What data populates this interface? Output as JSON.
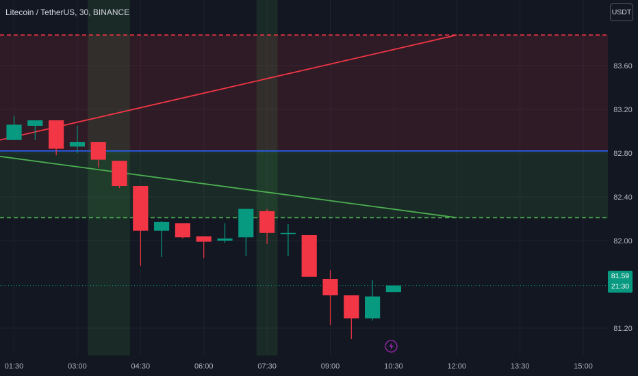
{
  "header": {
    "symbol": "Litecoin / TetherUS",
    "interval": "30",
    "exchange": "BINANCE",
    "title_text": "Litecoin / TetherUS, 30, BINANCE",
    "currency_button": "USDT"
  },
  "colors": {
    "background": "#131722",
    "grid": "#1e222d",
    "up": "#089981",
    "down": "#f23645",
    "resistance": "#f23645",
    "support": "#4caf50",
    "pivot": "#2962ff",
    "axis_text": "#b2b5be"
  },
  "price_badge": {
    "price": "81.59",
    "countdown": "21:30"
  },
  "event_icon": "lightning-bolt-icon",
  "chart_data": {
    "type": "candlestick",
    "x_axis": {
      "unit": "time",
      "range": [
        "01:10",
        "15:35"
      ],
      "tick_labels": [
        "01:30",
        "03:00",
        "04:30",
        "06:00",
        "07:30",
        "09:00",
        "10:30",
        "12:00",
        "13:30",
        "15:00"
      ]
    },
    "y_axis": {
      "position": "right",
      "range": [
        80.95,
        84.2
      ],
      "tick_labels": [
        "81.20",
        "81.59",
        "82.00",
        "82.40",
        "82.80",
        "83.20",
        "83.60"
      ],
      "ticks": [
        81.2,
        82.0,
        82.4,
        82.8,
        83.2,
        83.6
      ]
    },
    "grid": true,
    "candles": [
      {
        "time": "01:30",
        "open": 82.92,
        "high": 83.14,
        "low": 82.92,
        "close": 83.06
      },
      {
        "time": "02:00",
        "open": 83.05,
        "high": 83.08,
        "low": 82.92,
        "close": 83.1
      },
      {
        "time": "02:30",
        "open": 83.1,
        "high": 83.1,
        "low": 82.78,
        "close": 82.84
      },
      {
        "time": "03:00",
        "open": 82.86,
        "high": 83.05,
        "low": 82.8,
        "close": 82.9
      },
      {
        "time": "03:30",
        "open": 82.9,
        "high": 82.9,
        "low": 82.67,
        "close": 82.74
      },
      {
        "time": "04:00",
        "open": 82.73,
        "high": 82.73,
        "low": 82.48,
        "close": 82.5
      },
      {
        "time": "04:30",
        "open": 82.5,
        "high": 82.5,
        "low": 81.77,
        "close": 82.09
      },
      {
        "time": "05:00",
        "open": 82.09,
        "high": 82.18,
        "low": 81.85,
        "close": 82.17
      },
      {
        "time": "05:30",
        "open": 82.16,
        "high": 82.16,
        "low": 82.02,
        "close": 82.03
      },
      {
        "time": "06:00",
        "open": 82.04,
        "high": 82.04,
        "low": 81.84,
        "close": 81.99
      },
      {
        "time": "06:30",
        "open": 82.0,
        "high": 82.16,
        "low": 81.98,
        "close": 82.02
      },
      {
        "time": "07:00",
        "open": 82.03,
        "high": 82.29,
        "low": 81.86,
        "close": 82.29
      },
      {
        "time": "07:30",
        "open": 82.27,
        "high": 82.29,
        "low": 81.97,
        "close": 82.07
      },
      {
        "time": "08:00",
        "open": 82.07,
        "high": 82.15,
        "low": 81.86,
        "close": 82.07
      },
      {
        "time": "08:30",
        "open": 82.05,
        "high": 82.05,
        "low": 81.67,
        "close": 81.67
      },
      {
        "time": "09:00",
        "open": 81.65,
        "high": 81.73,
        "low": 81.23,
        "close": 81.5
      },
      {
        "time": "09:30",
        "open": 81.5,
        "high": 81.5,
        "low": 81.1,
        "close": 81.29
      },
      {
        "time": "10:00",
        "open": 81.29,
        "high": 81.64,
        "low": 81.27,
        "close": 81.49
      },
      {
        "time": "10:30",
        "open": 81.53,
        "high": 81.59,
        "low": 81.53,
        "close": 81.59
      }
    ],
    "horizontal_lines": [
      {
        "name": "resistance",
        "price": 83.88,
        "style": "dashed",
        "color": "#f23645"
      },
      {
        "name": "pivot",
        "price": 82.82,
        "style": "solid",
        "color": "#2962ff"
      },
      {
        "name": "support",
        "price": 82.21,
        "style": "dashed",
        "color": "#4caf50"
      },
      {
        "name": "last-price",
        "price": 81.59,
        "style": "dotted",
        "color": "#089981"
      }
    ],
    "trend_lines": [
      {
        "name": "red-trend-line",
        "from": {
          "time": "01:10",
          "price": 82.92
        },
        "to": {
          "time": "12:00",
          "price": 83.88
        },
        "color": "#f23645"
      },
      {
        "name": "green-trend-line",
        "from": {
          "time": "01:10",
          "price": 82.77
        },
        "to": {
          "time": "12:00",
          "price": 82.21
        },
        "color": "#4caf50"
      }
    ],
    "zones": [
      {
        "name": "red-zone",
        "from_price": 82.82,
        "to_price": 83.88,
        "color": "#f23645"
      },
      {
        "name": "green-zone",
        "from_price": 82.21,
        "to_price": 82.82,
        "color": "#4caf50"
      }
    ],
    "session_highlights": [
      {
        "name": "session-highlight-1",
        "from": "03:15",
        "to": "04:15",
        "color": "#4caf50"
      },
      {
        "name": "session-highlight-2",
        "from": "07:15",
        "to": "07:45",
        "color": "#4caf50"
      }
    ]
  }
}
